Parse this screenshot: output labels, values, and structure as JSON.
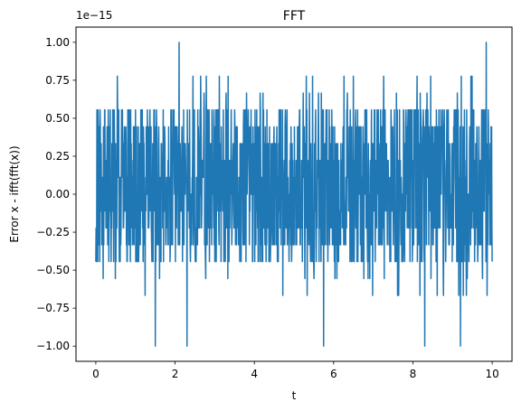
{
  "chart_data": {
    "type": "line",
    "title": "FFT",
    "xlabel": "t",
    "ylabel": "Error x - ifft(fft(x))",
    "offset_label": "1e−15",
    "xlim": [
      -0.5,
      10.5
    ],
    "ylim": [
      -1.1,
      1.1
    ],
    "xticks": [
      0,
      2,
      4,
      6,
      8,
      10
    ],
    "xtick_labels": [
      "0",
      "2",
      "4",
      "6",
      "8",
      "10"
    ],
    "yticks": [
      -1.0,
      -0.75,
      -0.5,
      -0.25,
      0.0,
      0.25,
      0.5,
      0.75,
      1.0
    ],
    "ytick_labels": [
      "−1.00",
      "−0.75",
      "−0.50",
      "−0.25",
      "0.00",
      "0.25",
      "0.50",
      "0.75",
      "1.00"
    ],
    "grid": false,
    "series": [
      {
        "color": "#1f77b4",
        "x_range": [
          0,
          10
        ],
        "scale": 1e-15,
        "quantization_step": 0.111,
        "envelope": [
          -1.0,
          1.0
        ],
        "typical_range": [
          -0.45,
          0.56
        ],
        "peaks": [
          {
            "x": 2.1,
            "y": 1.0
          },
          {
            "x": 9.85,
            "y": 1.0
          },
          {
            "x": 1.5,
            "y": -1.0
          },
          {
            "x": 2.3,
            "y": -1.0
          },
          {
            "x": 5.75,
            "y": -1.0
          },
          {
            "x": 8.3,
            "y": -1.0
          },
          {
            "x": 9.2,
            "y": -1.0
          }
        ]
      }
    ]
  }
}
